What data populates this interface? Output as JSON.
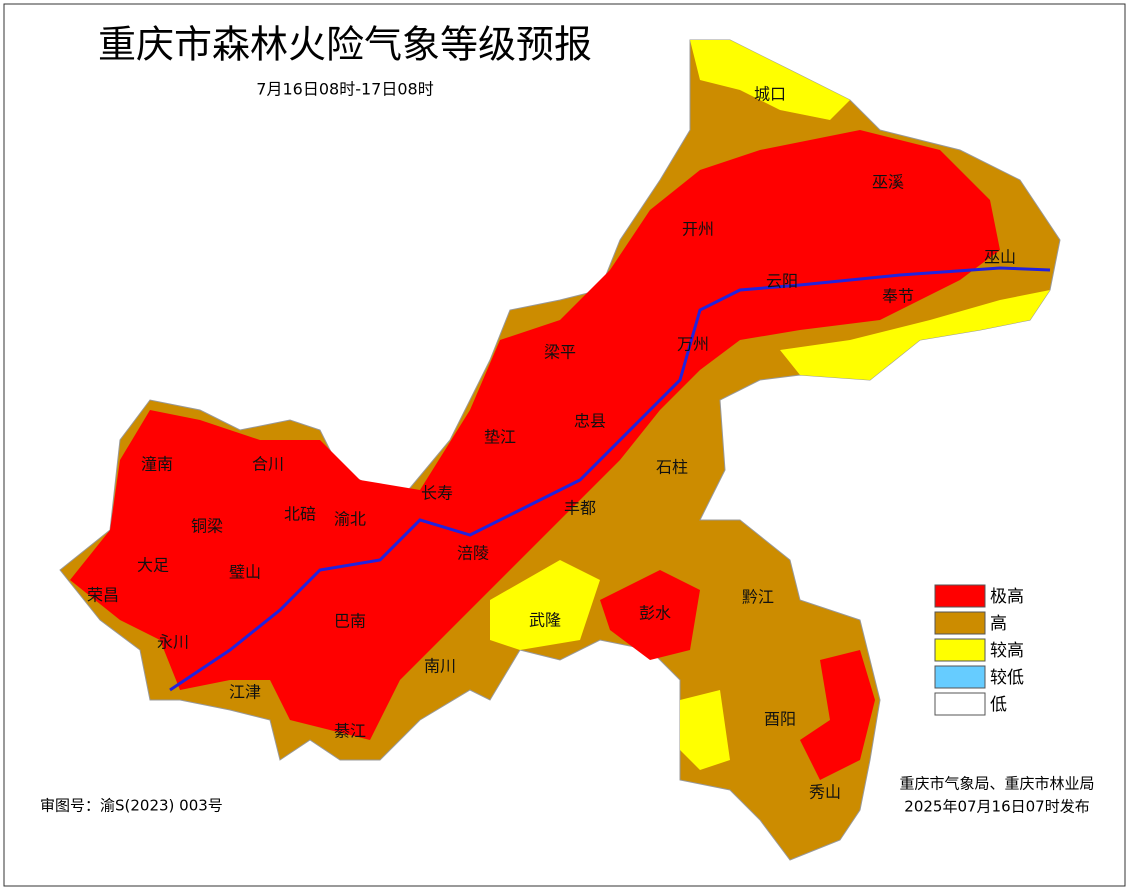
{
  "title": "重庆市森林火险气象等级预报",
  "subtitle": "7月16日08时-17日08时",
  "districts": [
    "城口",
    "巫溪",
    "开州",
    "云阳",
    "巫山",
    "奉节",
    "梁平",
    "万州",
    "忠县",
    "垫江",
    "石柱",
    "长寿",
    "丰都",
    "潼南",
    "合川",
    "铜梁",
    "北碚",
    "渝北",
    "大足",
    "璧山",
    "荣昌",
    "涪陵",
    "永川",
    "巴南",
    "武隆",
    "彭水",
    "黔江",
    "南川",
    "江津",
    "綦江",
    "酉阳",
    "秀山"
  ],
  "legend": [
    {
      "label": "极高",
      "color": "#ff0000"
    },
    {
      "label": "高",
      "color": "#cc8c00"
    },
    {
      "label": "较高",
      "color": "#ffff00"
    },
    {
      "label": "较低",
      "color": "#66ccff"
    },
    {
      "label": "低",
      "color": "#ffffff"
    }
  ],
  "approval": "审图号：渝S(2023) 003号",
  "issuer": "重庆市气象局、重庆市林业局",
  "issued": "2025年07月16日07时发布"
}
